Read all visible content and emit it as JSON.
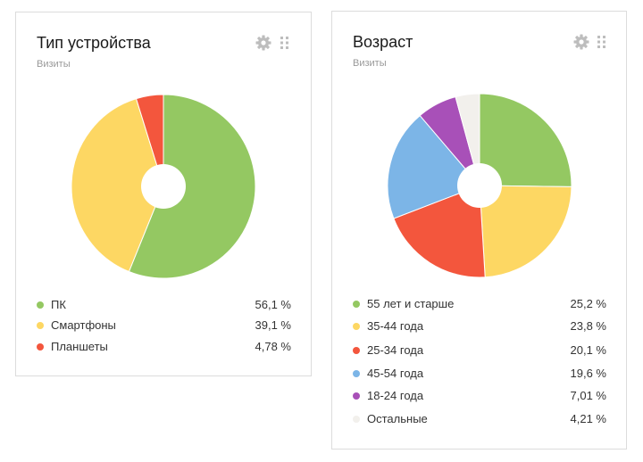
{
  "chart_data": [
    {
      "type": "pie",
      "title": "Тип устройства",
      "subtitle": "Визиты",
      "donut": true,
      "legend_position": "bottom",
      "series": [
        {
          "name": "ПК",
          "value": 56.1,
          "label": "56,1 %",
          "color": "#94c862"
        },
        {
          "name": "Смартфоны",
          "value": 39.1,
          "label": "39,1 %",
          "color": "#fdd763"
        },
        {
          "name": "Планшеты",
          "value": 4.78,
          "label": "4,78 %",
          "color": "#f3563d"
        }
      ]
    },
    {
      "type": "pie",
      "title": "Возраст",
      "subtitle": "Визиты",
      "donut": true,
      "legend_position": "bottom",
      "series": [
        {
          "name": "55 лет и старше",
          "value": 25.2,
          "label": "25,2 %",
          "color": "#94c862"
        },
        {
          "name": "35-44 года",
          "value": 23.8,
          "label": "23,8 %",
          "color": "#fdd763"
        },
        {
          "name": "25-34 года",
          "value": 20.1,
          "label": "20,1 %",
          "color": "#f3563d"
        },
        {
          "name": "45-54 года",
          "value": 19.6,
          "label": "19,6 %",
          "color": "#7cb5e7"
        },
        {
          "name": "18-24 года",
          "value": 7.01,
          "label": "7,01 %",
          "color": "#a850b8"
        },
        {
          "name": "Остальные",
          "value": 4.21,
          "label": "4,21 %",
          "color": "#f2f0ec"
        }
      ]
    }
  ],
  "icons": {
    "settings": "gear-icon",
    "drag": "drag-handle-icon"
  }
}
